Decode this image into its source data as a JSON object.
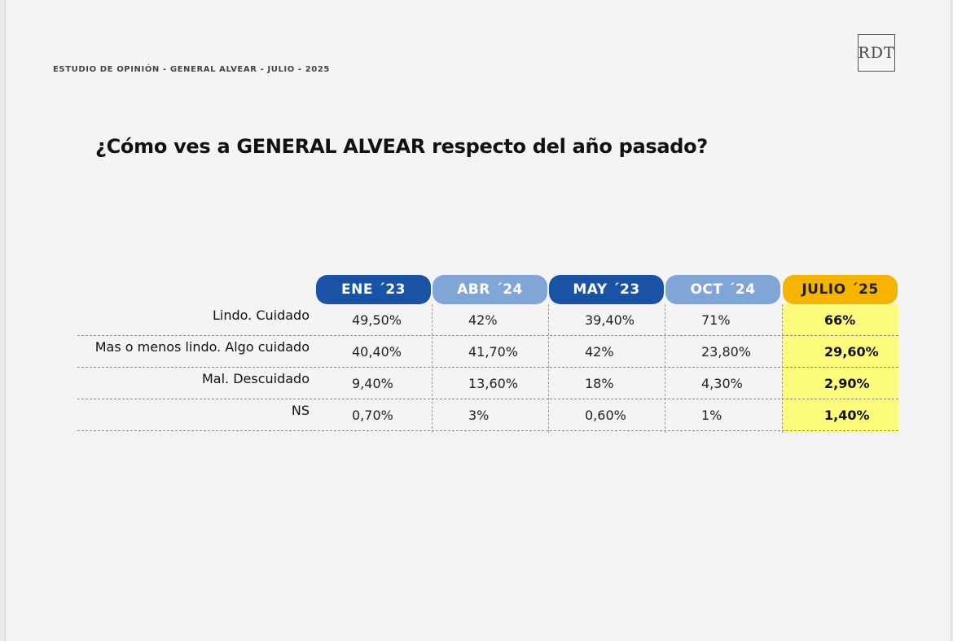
{
  "header": {
    "study": "ESTUDIO DE OPINIÓN - GENERAL ALVEAR - JULIO - 2025",
    "logo_text": "RDT"
  },
  "question": "¿Cómo ves a GENERAL ALVEAR respecto del año pasado?",
  "table": {
    "columns": [
      "ENE ´23",
      "ABR ´24",
      "MAY ´23",
      "OCT ´24",
      "JULIO ´25"
    ],
    "highlight_column": "JULIO ´25",
    "rows": [
      {
        "label": "Lindo. Cuidado",
        "values": [
          "49,50%",
          "42%",
          "39,40%",
          "71%",
          "66%"
        ]
      },
      {
        "label": "Mas o menos lindo. Algo cuidado",
        "values": [
          "40,40%",
          "41,70%",
          "42%",
          "23,80%",
          "29,60%"
        ]
      },
      {
        "label": "Mal. Descuidado",
        "values": [
          "9,40%",
          "13,60%",
          "18%",
          "4,30%",
          "2,90%"
        ]
      },
      {
        "label": "NS",
        "values": [
          "0,70%",
          "3%",
          "0,60%",
          "1%",
          "1,40%"
        ]
      }
    ]
  },
  "colors": {
    "dark_blue": "#1a53a5",
    "light_blue": "#7fa6d6",
    "gold": "#f6b400",
    "highlight": "#fdfb7c"
  }
}
